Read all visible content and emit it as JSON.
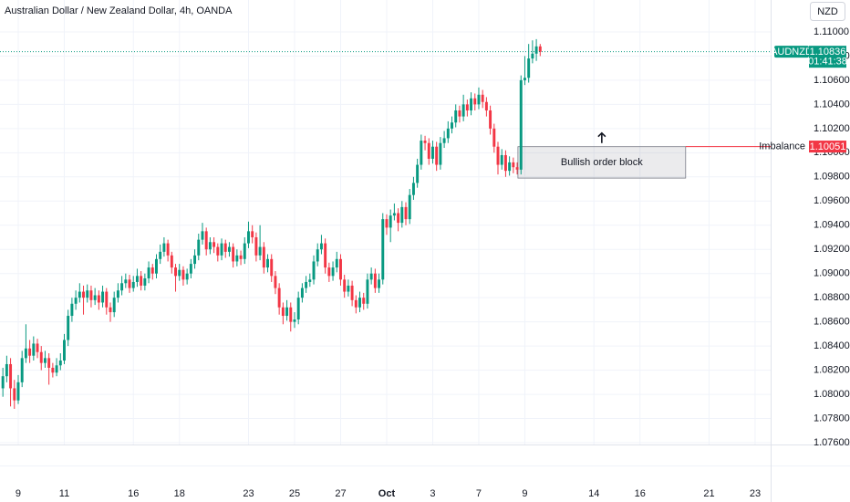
{
  "chart_data": {
    "type": "candlestick",
    "title": "Australian Dollar / New Zealand Dollar, 4h, OANDA",
    "currency_button": "NZD",
    "symbol": "AUDNZD",
    "last_price": 1.10836,
    "countdown": "01:41:38",
    "up_color": "#089981",
    "down_color": "#f23645",
    "grid": true,
    "xlim": [
      -0.75,
      200.05
    ],
    "ylim": [
      1.07585,
      1.11264
    ],
    "xticks": [
      {
        "value": 4,
        "label": "9"
      },
      {
        "value": 16,
        "label": "11"
      },
      {
        "value": 34,
        "label": "16"
      },
      {
        "value": 46,
        "label": "18"
      },
      {
        "value": 64,
        "label": "23"
      },
      {
        "value": 76,
        "label": "25"
      },
      {
        "value": 88,
        "label": "27"
      },
      {
        "value": 100,
        "label": "Oct"
      },
      {
        "value": 112,
        "label": "3"
      },
      {
        "value": 124,
        "label": "7"
      },
      {
        "value": 136,
        "label": "9"
      },
      {
        "value": 154,
        "label": "14"
      },
      {
        "value": 166,
        "label": "16"
      },
      {
        "value": 184,
        "label": "21"
      },
      {
        "value": 196,
        "label": "23"
      }
    ],
    "yticks": [
      {
        "value": 1.11,
        "label": "1.11000"
      },
      {
        "value": 1.108,
        "label": "1.10800"
      },
      {
        "value": 1.106,
        "label": "1.10600"
      },
      {
        "value": 1.104,
        "label": "1.10400"
      },
      {
        "value": 1.102,
        "label": "1.10200"
      },
      {
        "value": 1.1,
        "label": "1.10000"
      },
      {
        "value": 1.098,
        "label": "1.09800"
      },
      {
        "value": 1.096,
        "label": "1.09600"
      },
      {
        "value": 1.094,
        "label": "1.09400"
      },
      {
        "value": 1.092,
        "label": "1.09200"
      },
      {
        "value": 1.09,
        "label": "1.09000"
      },
      {
        "value": 1.088,
        "label": "1.08800"
      },
      {
        "value": 1.086,
        "label": "1.08600"
      },
      {
        "value": 1.084,
        "label": "1.08400"
      },
      {
        "value": 1.082,
        "label": "1.08200"
      },
      {
        "value": 1.08,
        "label": "1.08000"
      },
      {
        "value": 1.078,
        "label": "1.07800"
      },
      {
        "value": 1.076,
        "label": "1.07600"
      }
    ],
    "order_block": {
      "label": "Bullish order block",
      "top": 1.1005,
      "bottom": 1.0979,
      "x_start": 134.2,
      "x_end": 177.9
    },
    "imbalance": {
      "label": "Imbalance",
      "value": 1.10051,
      "color": "#f23645"
    },
    "candles": [
      [
        1.0805,
        1.0822,
        1.0798,
        1.0815
      ],
      [
        1.0815,
        1.0832,
        1.081,
        1.0825
      ],
      [
        1.0825,
        1.083,
        1.079,
        1.0805
      ],
      [
        1.0805,
        1.0812,
        1.0788,
        1.0795
      ],
      [
        1.0795,
        1.0816,
        1.0792,
        1.081
      ],
      [
        1.081,
        1.0836,
        1.0806,
        1.083
      ],
      [
        1.083,
        1.0858,
        1.0826,
        1.0838
      ],
      [
        1.0838,
        1.0845,
        1.0826,
        1.0832
      ],
      [
        1.0832,
        1.0848,
        1.0828,
        1.0842
      ],
      [
        1.0842,
        1.0846,
        1.083,
        1.0835
      ],
      [
        1.0835,
        1.084,
        1.082,
        1.0826
      ],
      [
        1.0826,
        1.0836,
        1.0822,
        1.083
      ],
      [
        1.083,
        1.0834,
        1.0808,
        1.0822
      ],
      [
        1.0822,
        1.0826,
        1.0814,
        1.0818
      ],
      [
        1.0818,
        1.083,
        1.0815,
        1.0824
      ],
      [
        1.0824,
        1.0834,
        1.082,
        1.0828
      ],
      [
        1.0828,
        1.085,
        1.0825,
        1.0845
      ],
      [
        1.0845,
        1.087,
        1.084,
        1.0865
      ],
      [
        1.0865,
        1.088,
        1.086,
        1.0875
      ],
      [
        1.0875,
        1.0886,
        1.087,
        1.088
      ],
      [
        1.088,
        1.0892,
        1.0876,
        1.0885
      ],
      [
        1.0885,
        1.089,
        1.0866,
        1.088
      ],
      [
        1.088,
        1.0891,
        1.0876,
        1.0886
      ],
      [
        1.0886,
        1.089,
        1.0872,
        1.0878
      ],
      [
        1.0878,
        1.0888,
        1.0874,
        1.0882
      ],
      [
        1.0882,
        1.0886,
        1.087,
        1.0876
      ],
      [
        1.0876,
        1.089,
        1.0872,
        1.0885
      ],
      [
        1.0885,
        1.0888,
        1.0866,
        1.0872
      ],
      [
        1.0872,
        1.0876,
        1.086,
        1.0868
      ],
      [
        1.0868,
        1.0885,
        1.0864,
        1.088
      ],
      [
        1.088,
        1.0892,
        1.0876,
        1.0886
      ],
      [
        1.0886,
        1.0898,
        1.0882,
        1.0892
      ],
      [
        1.0892,
        1.09,
        1.0888,
        1.0895
      ],
      [
        1.0895,
        1.0899,
        1.0884,
        1.0888
      ],
      [
        1.0888,
        1.0898,
        1.0885,
        1.0893
      ],
      [
        1.0893,
        1.0904,
        1.0889,
        1.0898
      ],
      [
        1.0898,
        1.0902,
        1.0886,
        1.089
      ],
      [
        1.089,
        1.09,
        1.0886,
        1.0896
      ],
      [
        1.0896,
        1.091,
        1.0892,
        1.0905
      ],
      [
        1.0905,
        1.0908,
        1.0895,
        1.09
      ],
      [
        1.09,
        1.0916,
        1.0896,
        1.0912
      ],
      [
        1.0912,
        1.0924,
        1.0908,
        1.0918
      ],
      [
        1.0918,
        1.093,
        1.0914,
        1.0925
      ],
      [
        1.0925,
        1.0928,
        1.091,
        1.0915
      ],
      [
        1.0915,
        1.0918,
        1.09,
        1.0905
      ],
      [
        1.0905,
        1.0908,
        1.0885,
        1.0898
      ],
      [
        1.0898,
        1.0908,
        1.0894,
        1.0903
      ],
      [
        1.0903,
        1.0906,
        1.089,
        1.0895
      ],
      [
        1.0895,
        1.0904,
        1.0891,
        1.09
      ],
      [
        1.09,
        1.0912,
        1.0896,
        1.0908
      ],
      [
        1.0908,
        1.092,
        1.0904,
        1.0915
      ],
      [
        1.0915,
        1.0933,
        1.0911,
        1.0928
      ],
      [
        1.0928,
        1.0942,
        1.0924,
        1.0935
      ],
      [
        1.0935,
        1.0938,
        1.0915,
        1.092
      ],
      [
        1.092,
        1.093,
        1.0916,
        1.0926
      ],
      [
        1.0926,
        1.093,
        1.0917,
        1.0922
      ],
      [
        1.0922,
        1.0925,
        1.091,
        1.0915
      ],
      [
        1.0915,
        1.0929,
        1.0911,
        1.0925
      ],
      [
        1.0925,
        1.0928,
        1.0913,
        1.0918
      ],
      [
        1.0918,
        1.0926,
        1.0914,
        1.0922
      ],
      [
        1.0922,
        1.0925,
        1.0905,
        1.091
      ],
      [
        1.091,
        1.092,
        1.0906,
        1.0915
      ],
      [
        1.0915,
        1.0919,
        1.0907,
        1.0912
      ],
      [
        1.0912,
        1.093,
        1.0908,
        1.0925
      ],
      [
        1.0925,
        1.0943,
        1.0921,
        1.0935
      ],
      [
        1.0935,
        1.094,
        1.0925,
        1.093
      ],
      [
        1.093,
        1.0934,
        1.091,
        1.0915
      ],
      [
        1.0915,
        1.094,
        1.0911,
        1.0922
      ],
      [
        1.0922,
        1.0926,
        1.09,
        1.0905
      ],
      [
        1.0905,
        1.0916,
        1.0901,
        1.0912
      ],
      [
        1.0912,
        1.0916,
        1.0893,
        1.0898
      ],
      [
        1.0898,
        1.0902,
        1.0883,
        1.0888
      ],
      [
        1.0888,
        1.0892,
        1.0866,
        1.0872
      ],
      [
        1.0872,
        1.0876,
        1.0858,
        1.0865
      ],
      [
        1.0865,
        1.0878,
        1.0861,
        1.0872
      ],
      [
        1.0872,
        1.0876,
        1.0852,
        1.086
      ],
      [
        1.086,
        1.0868,
        1.0855,
        1.0862
      ],
      [
        1.0862,
        1.0885,
        1.0858,
        1.088
      ],
      [
        1.088,
        1.0892,
        1.0876,
        1.0888
      ],
      [
        1.0888,
        1.0898,
        1.0884,
        1.0893
      ],
      [
        1.0893,
        1.09,
        1.0889,
        1.0895
      ],
      [
        1.0895,
        1.0915,
        1.0891,
        1.091
      ],
      [
        1.091,
        1.0925,
        1.0906,
        1.092
      ],
      [
        1.092,
        1.0932,
        1.0916,
        1.0925
      ],
      [
        1.0925,
        1.0929,
        1.09,
        1.0905
      ],
      [
        1.0905,
        1.0909,
        1.0893,
        1.0898
      ],
      [
        1.0898,
        1.091,
        1.0894,
        1.0905
      ],
      [
        1.0905,
        1.0918,
        1.0901,
        1.0912
      ],
      [
        1.0912,
        1.0916,
        1.089,
        1.0895
      ],
      [
        1.0895,
        1.0899,
        1.088,
        1.0885
      ],
      [
        1.0885,
        1.0895,
        1.0881,
        1.089
      ],
      [
        1.089,
        1.0894,
        1.0873,
        1.0878
      ],
      [
        1.0878,
        1.0882,
        1.0867,
        1.0872
      ],
      [
        1.0872,
        1.0885,
        1.0868,
        1.088
      ],
      [
        1.088,
        1.0884,
        1.087,
        1.0875
      ],
      [
        1.0875,
        1.09,
        1.0871,
        1.0895
      ],
      [
        1.0895,
        1.0905,
        1.0891,
        1.09
      ],
      [
        1.09,
        1.0904,
        1.0884,
        1.0888
      ],
      [
        1.0888,
        1.09,
        1.0884,
        1.0895
      ],
      [
        1.0895,
        1.095,
        1.0891,
        1.0945
      ],
      [
        1.0945,
        1.0949,
        1.0932,
        1.0938
      ],
      [
        1.0938,
        1.0953,
        1.0926,
        1.0948
      ],
      [
        1.0948,
        1.0958,
        1.0944,
        1.095
      ],
      [
        1.095,
        1.0954,
        1.0935,
        1.0942
      ],
      [
        1.0942,
        1.096,
        1.0938,
        1.0955
      ],
      [
        1.0955,
        1.0959,
        1.094,
        1.0945
      ],
      [
        1.0945,
        1.097,
        1.0941,
        1.0965
      ],
      [
        1.0965,
        1.098,
        1.0961,
        1.0975
      ],
      [
        1.0975,
        1.0995,
        1.0971,
        1.099
      ],
      [
        1.099,
        1.1015,
        1.0986,
        1.101
      ],
      [
        1.101,
        1.1014,
        1.1002,
        1.1008
      ],
      [
        1.1008,
        1.1012,
        1.099,
        1.0995
      ],
      [
        1.0995,
        1.101,
        1.0991,
        1.1005
      ],
      [
        1.1005,
        1.1009,
        1.0985,
        1.099
      ],
      [
        1.099,
        1.1013,
        1.0986,
        1.1008
      ],
      [
        1.1008,
        1.1018,
        1.1004,
        1.1012
      ],
      [
        1.1012,
        1.1026,
        1.1008,
        1.102
      ],
      [
        1.102,
        1.103,
        1.1016,
        1.1025
      ],
      [
        1.1025,
        1.104,
        1.1021,
        1.1035
      ],
      [
        1.1035,
        1.1039,
        1.1025,
        1.103
      ],
      [
        1.103,
        1.1048,
        1.1026,
        1.104
      ],
      [
        1.104,
        1.1044,
        1.103,
        1.1035
      ],
      [
        1.1035,
        1.105,
        1.1031,
        1.1045
      ],
      [
        1.1045,
        1.1049,
        1.1035,
        1.104
      ],
      [
        1.104,
        1.1054,
        1.1036,
        1.1048
      ],
      [
        1.1048,
        1.1052,
        1.1037,
        1.1042
      ],
      [
        1.1042,
        1.1046,
        1.103,
        1.1035
      ],
      [
        1.1035,
        1.1039,
        1.1015,
        1.102
      ],
      [
        1.102,
        1.1024,
        1.1,
        1.1005
      ],
      [
        1.1005,
        1.1009,
        1.0982,
        1.099
      ],
      [
        1.099,
        1.1003,
        1.0986,
        1.0998
      ],
      [
        1.0998,
        1.1002,
        1.098,
        1.0985
      ],
      [
        1.0985,
        1.0997,
        1.0981,
        1.0992
      ],
      [
        1.0992,
        1.0996,
        1.0983,
        1.0988
      ],
      [
        1.0988,
        1.0992,
        1.0982,
        1.0986
      ],
      [
        1.0986,
        1.1064,
        1.0982,
        1.106
      ],
      [
        1.106,
        1.108,
        1.1056,
        1.1062
      ],
      [
        1.1062,
        1.109,
        1.1058,
        1.1078
      ],
      [
        1.1078,
        1.1093,
        1.1074,
        1.1082
      ],
      [
        1.1082,
        1.1094,
        1.1076,
        1.1088
      ],
      [
        1.1088,
        1.109,
        1.108,
        1.10836
      ]
    ]
  }
}
